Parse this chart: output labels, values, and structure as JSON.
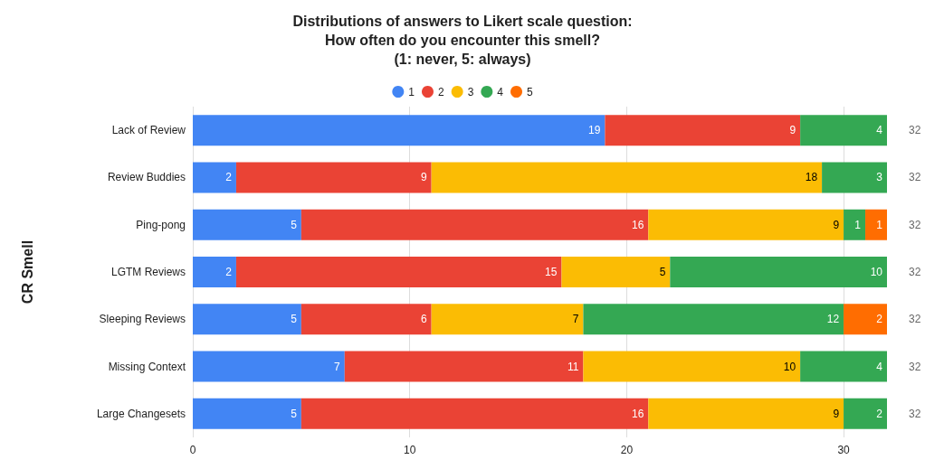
{
  "chart_data": {
    "type": "bar",
    "orientation": "horizontal",
    "stacked": true,
    "title": "Distributions of answers to Likert scale question:\nHow often do you encounter this smell?\n(1: never, 5: always)",
    "ylabel": "CR Smell",
    "categories": [
      "Lack of Review",
      "Review Buddies",
      "Ping-pong",
      "LGTM Reviews",
      "Sleeping Reviews",
      "Missing Context",
      "Large Changesets"
    ],
    "series": [
      {
        "name": "1",
        "color": "#4285f4",
        "values": [
          19,
          2,
          5,
          2,
          5,
          7,
          5
        ]
      },
      {
        "name": "2",
        "color": "#ea4335",
        "values": [
          9,
          9,
          16,
          15,
          6,
          11,
          16
        ]
      },
      {
        "name": "3",
        "color": "#fbbc04",
        "values": [
          null,
          18,
          9,
          5,
          7,
          10,
          9
        ]
      },
      {
        "name": "4",
        "color": "#34a853",
        "values": [
          4,
          3,
          1,
          10,
          12,
          4,
          2
        ]
      },
      {
        "name": "5",
        "color": "#ff6d01",
        "values": [
          null,
          null,
          1,
          null,
          2,
          null,
          null
        ]
      }
    ],
    "xlim": [
      0,
      32
    ],
    "xticks": [
      0,
      10,
      20,
      30
    ],
    "grid": "x",
    "legend": "top",
    "data_labels": true,
    "totals": [
      "32",
      "32",
      "32",
      "32",
      "32",
      "32",
      "32"
    ]
  }
}
